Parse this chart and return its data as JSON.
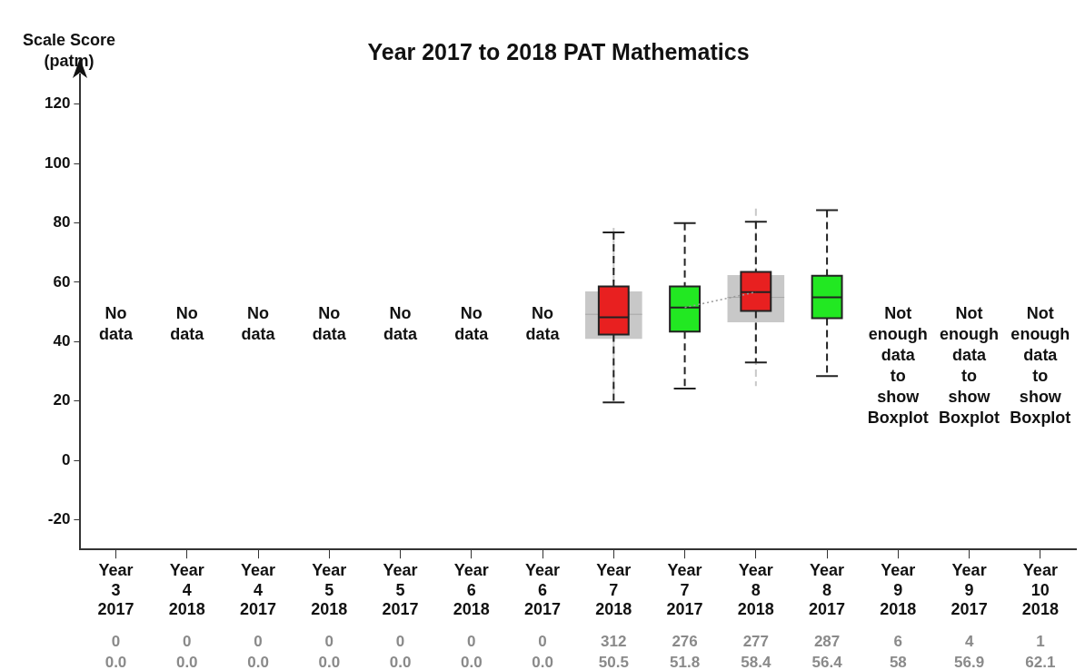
{
  "chart_data": {
    "type": "box",
    "title": "Year 2017 to 2018 PAT Mathematics",
    "ylabel": "Scale Score\n(patm)",
    "categories": [
      "Year 3 2017",
      "Year 4 2018",
      "Year 4 2017",
      "Year 5 2018",
      "Year 5 2017",
      "Year 6 2018",
      "Year 6 2017",
      "Year 7 2018",
      "Year 7 2017",
      "Year 8 2018",
      "Year 8 2017",
      "Year 9 2018",
      "Year 9 2017",
      "Year 10 2018"
    ],
    "ylim": [
      -30,
      130
    ],
    "yticks": [
      -20,
      0,
      20,
      40,
      60,
      80,
      100,
      120
    ],
    "grid": false,
    "legend": false,
    "series": [
      {
        "colors": [
          null,
          null,
          null,
          null,
          null,
          null,
          null,
          "#e82020",
          "#22e822",
          "#e82020",
          "#22e822",
          null,
          null,
          null
        ],
        "boxes": [
          null,
          null,
          null,
          null,
          null,
          null,
          null,
          {
            "low": 19.5,
            "q1": 42.4,
            "median": 48.2,
            "q3": 58.6,
            "high": 76.8
          },
          {
            "low": 24.2,
            "q1": 43.4,
            "median": 51.5,
            "q3": 58.6,
            "high": 79.9
          },
          {
            "low": 33,
            "q1": 50.3,
            "median": 56.7,
            "q3": 63.5,
            "high": 80.4
          },
          {
            "low": 28.4,
            "q1": 47.9,
            "median": 54.9,
            "q3": 62.2,
            "high": 84.3
          },
          null,
          null,
          null
        ]
      },
      {
        "color": "#c8c8c8",
        "boxes": [
          null,
          null,
          null,
          null,
          null,
          null,
          null,
          {
            "low": 22.4,
            "q1": 40.9,
            "median": 49.2,
            "q3": 56.9,
            "high": 78.3
          },
          null,
          {
            "low": 25,
            "q1": 46.5,
            "median": 54.9,
            "q3": 62.4,
            "high": 84.8
          },
          null,
          null,
          null,
          null
        ]
      },
      {
        "type": "line",
        "color": "#999999",
        "line_style": "dotted",
        "values": [
          null,
          null,
          null,
          null,
          null,
          null,
          null,
          null,
          51.5,
          56.7,
          null,
          null,
          null,
          null
        ]
      }
    ],
    "annotations": [
      "No data",
      "No data",
      "No data",
      "No data",
      "No data",
      "No data",
      "No data",
      "Not enough data to show Boxplot",
      "Not enough data to show Boxplot",
      "Not enough data to show Boxplot",
      "0",
      "0.0",
      "0",
      "0.0",
      "0",
      "0.0",
      "0",
      "0.0",
      "0",
      "0.0",
      "0",
      "0.0",
      "0",
      "0.0",
      "312",
      "50.5",
      "276",
      "51.8",
      "277",
      "58.4",
      "287",
      "56.4",
      "6",
      "58",
      "4",
      "56.9",
      "1",
      "62.1"
    ]
  }
}
